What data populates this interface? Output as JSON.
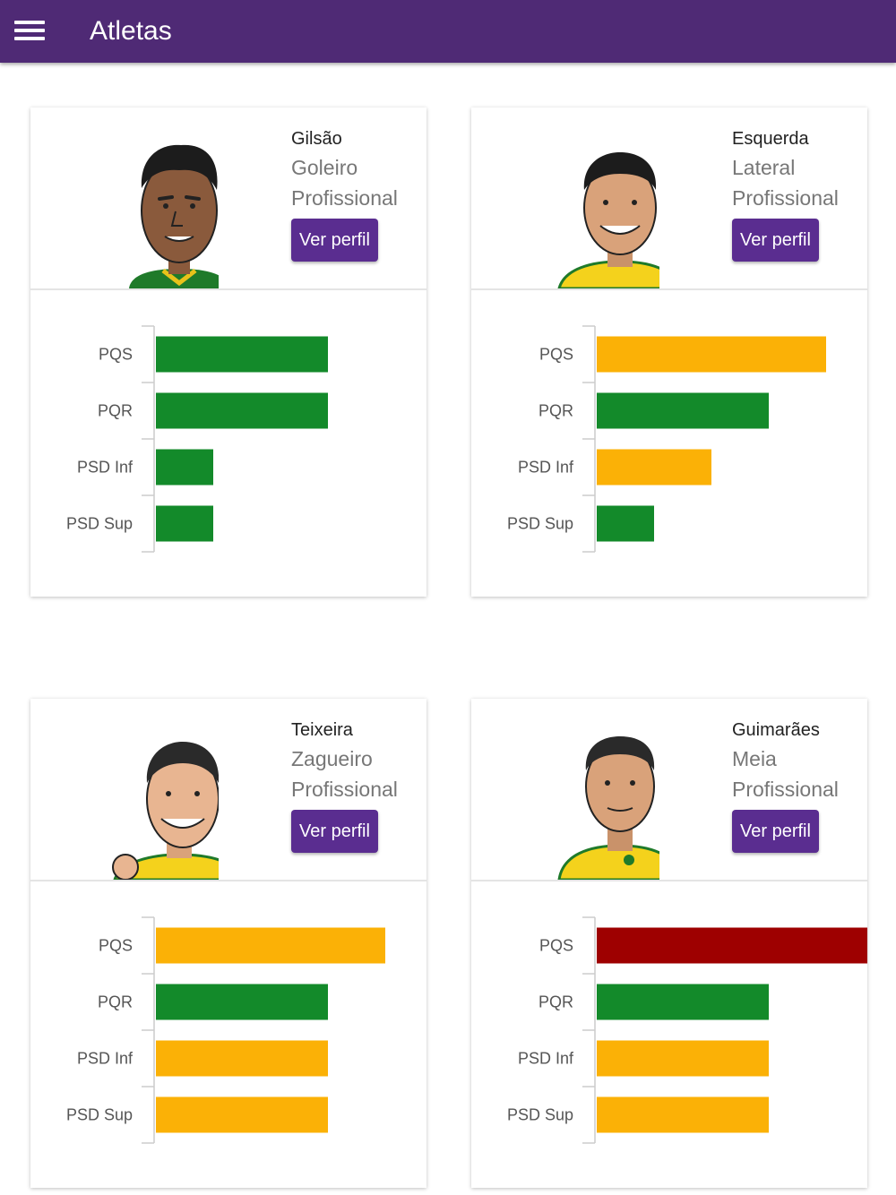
{
  "appbar": {
    "title": "Atletas"
  },
  "athletes": [
    {
      "name": "Gilsão",
      "position": "Goleiro",
      "level": "Profissional",
      "button": "Ver perfil",
      "chart_data": {
        "type": "bar",
        "categories": [
          "PQS",
          "PQR",
          "PSD Inf",
          "PSD Sup"
        ],
        "values": [
          3,
          3,
          1,
          1
        ],
        "colors": [
          "#138a2a",
          "#138a2a",
          "#138a2a",
          "#138a2a"
        ]
      }
    },
    {
      "name": "Esquerda",
      "position": "Lateral",
      "level": "Profissional",
      "button": "Ver perfil",
      "chart_data": {
        "type": "bar",
        "categories": [
          "PQS",
          "PQR",
          "PSD Inf",
          "PSD Sup"
        ],
        "values": [
          4,
          3,
          2,
          1
        ],
        "colors": [
          "#fbb106",
          "#138a2a",
          "#fbb106",
          "#138a2a"
        ]
      }
    },
    {
      "name": "Teixeira",
      "position": "Zagueiro",
      "level": "Profissional",
      "button": "Ver perfil",
      "chart_data": {
        "type": "bar",
        "categories": [
          "PQS",
          "PQR",
          "PSD Inf",
          "PSD Sup"
        ],
        "values": [
          4,
          3,
          3,
          3
        ],
        "colors": [
          "#fbb106",
          "#138a2a",
          "#fbb106",
          "#fbb106"
        ]
      }
    },
    {
      "name": "Guimarães",
      "position": "Meia",
      "level": "Profissional",
      "button": "Ver perfil",
      "chart_data": {
        "type": "bar",
        "categories": [
          "PQS",
          "PQR",
          "PSD Inf",
          "PSD Sup"
        ],
        "values": [
          5,
          3,
          3,
          3
        ],
        "colors": [
          "#9e0000",
          "#138a2a",
          "#fbb106",
          "#fbb106"
        ]
      }
    }
  ]
}
